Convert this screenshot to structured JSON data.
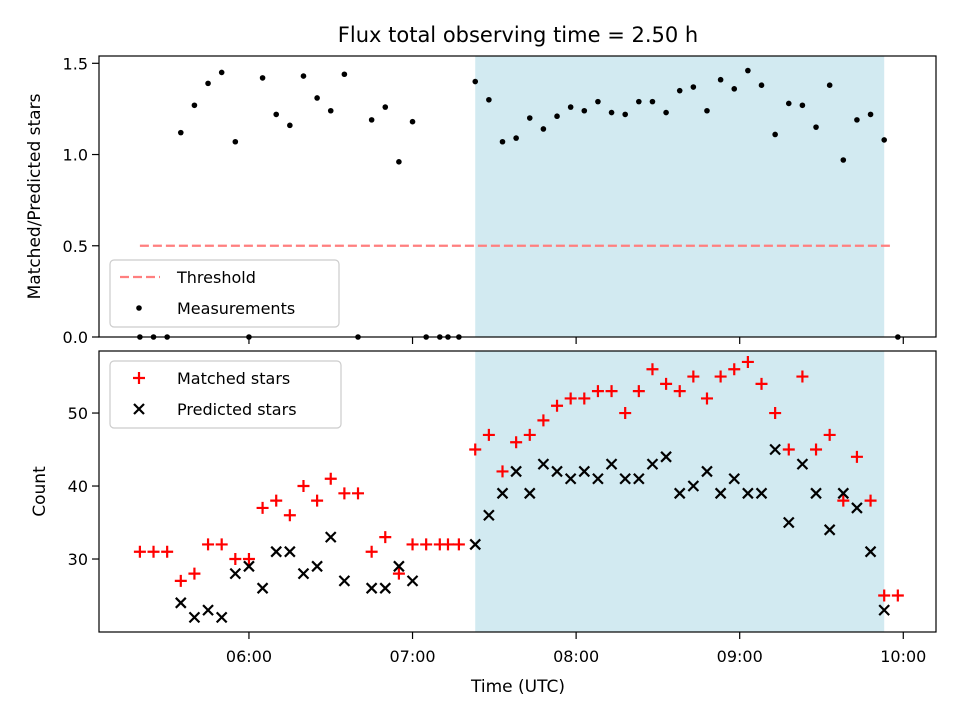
{
  "chart_data": [
    {
      "type": "scatter",
      "title": "Flux total observing time = 2.50 h",
      "xlabel": "",
      "ylabel": "Matched/Predicted stars",
      "xlim": [
        "05:05",
        "10:12"
      ],
      "ylim": [
        0,
        1.54
      ],
      "yticks": [
        0,
        0.5,
        1.0,
        1.5
      ],
      "ytick_labels": [
        "0.0",
        "0.5",
        "1.0",
        "1.5"
      ],
      "grid": false,
      "legend": "lower-left",
      "shaded_interval": {
        "start": "07:23",
        "end": "09:53",
        "color": "#add8e6"
      },
      "threshold": {
        "name": "Threshold",
        "y": 0.5,
        "x_start": "05:20",
        "x_end": "09:56",
        "color": "#ff7f7f",
        "style": "dashed"
      },
      "series": [
        {
          "name": "Measurements",
          "color": "#000000",
          "marker": "dot",
          "points": [
            [
              "05:20",
              0.0
            ],
            [
              "05:25",
              0.0
            ],
            [
              "05:30",
              0.0
            ],
            [
              "05:35",
              1.12
            ],
            [
              "05:40",
              1.27
            ],
            [
              "05:45",
              1.39
            ],
            [
              "05:50",
              1.45
            ],
            [
              "05:55",
              1.07
            ],
            [
              "06:00",
              0.0
            ],
            [
              "06:05",
              1.42
            ],
            [
              "06:10",
              1.22
            ],
            [
              "06:15",
              1.16
            ],
            [
              "06:20",
              1.43
            ],
            [
              "06:25",
              1.31
            ],
            [
              "06:30",
              1.24
            ],
            [
              "06:35",
              1.44
            ],
            [
              "06:40",
              0.0
            ],
            [
              "06:45",
              1.19
            ],
            [
              "06:50",
              1.26
            ],
            [
              "06:55",
              0.96
            ],
            [
              "07:00",
              1.18
            ],
            [
              "07:05",
              0.0
            ],
            [
              "07:10",
              0.0
            ],
            [
              "07:13",
              0.0
            ],
            [
              "07:17",
              0.0
            ],
            [
              "07:23",
              1.4
            ],
            [
              "07:28",
              1.3
            ],
            [
              "07:33",
              1.07
            ],
            [
              "07:38",
              1.09
            ],
            [
              "07:43",
              1.2
            ],
            [
              "07:48",
              1.14
            ],
            [
              "07:53",
              1.21
            ],
            [
              "07:58",
              1.26
            ],
            [
              "08:03",
              1.24
            ],
            [
              "08:08",
              1.29
            ],
            [
              "08:13",
              1.23
            ],
            [
              "08:18",
              1.22
            ],
            [
              "08:23",
              1.29
            ],
            [
              "08:28",
              1.29
            ],
            [
              "08:33",
              1.23
            ],
            [
              "08:38",
              1.35
            ],
            [
              "08:43",
              1.37
            ],
            [
              "08:48",
              1.24
            ],
            [
              "08:53",
              1.41
            ],
            [
              "08:58",
              1.36
            ],
            [
              "09:03",
              1.46
            ],
            [
              "09:08",
              1.38
            ],
            [
              "09:13",
              1.11
            ],
            [
              "09:18",
              1.28
            ],
            [
              "09:23",
              1.27
            ],
            [
              "09:28",
              1.15
            ],
            [
              "09:33",
              1.38
            ],
            [
              "09:38",
              0.97
            ],
            [
              "09:43",
              1.19
            ],
            [
              "09:48",
              1.22
            ],
            [
              "09:53",
              1.08
            ],
            [
              "09:58",
              0.0
            ]
          ]
        }
      ]
    },
    {
      "type": "scatter",
      "title": "",
      "xlabel": "Time (UTC)",
      "ylabel": "Count",
      "xlim": [
        "05:05",
        "10:12"
      ],
      "xticks": [
        "06:00",
        "07:00",
        "08:00",
        "09:00",
        "10:00"
      ],
      "ylim": [
        20,
        58.5
      ],
      "yticks": [
        30,
        40,
        50
      ],
      "ytick_labels": [
        "30",
        "40",
        "50"
      ],
      "grid": false,
      "legend": "upper-left",
      "shaded_interval": {
        "start": "07:23",
        "end": "09:53",
        "color": "#add8e6"
      },
      "series": [
        {
          "name": "Matched stars",
          "color": "#ff0000",
          "marker": "plus",
          "points": [
            [
              "05:20",
              31
            ],
            [
              "05:25",
              31
            ],
            [
              "05:30",
              31
            ],
            [
              "05:35",
              27
            ],
            [
              "05:40",
              28
            ],
            [
              "05:45",
              32
            ],
            [
              "05:50",
              32
            ],
            [
              "05:55",
              30
            ],
            [
              "06:00",
              30
            ],
            [
              "06:05",
              37
            ],
            [
              "06:10",
              38
            ],
            [
              "06:15",
              36
            ],
            [
              "06:20",
              40
            ],
            [
              "06:25",
              38
            ],
            [
              "06:30",
              41
            ],
            [
              "06:35",
              39
            ],
            [
              "06:40",
              39
            ],
            [
              "06:45",
              31
            ],
            [
              "06:50",
              33
            ],
            [
              "06:55",
              28
            ],
            [
              "07:00",
              32
            ],
            [
              "07:05",
              32
            ],
            [
              "07:10",
              32
            ],
            [
              "07:13",
              32
            ],
            [
              "07:17",
              32
            ],
            [
              "07:23",
              45
            ],
            [
              "07:28",
              47
            ],
            [
              "07:33",
              42
            ],
            [
              "07:38",
              46
            ],
            [
              "07:43",
              47
            ],
            [
              "07:48",
              49
            ],
            [
              "07:53",
              51
            ],
            [
              "07:58",
              52
            ],
            [
              "08:03",
              52
            ],
            [
              "08:08",
              53
            ],
            [
              "08:13",
              53
            ],
            [
              "08:18",
              50
            ],
            [
              "08:23",
              53
            ],
            [
              "08:28",
              56
            ],
            [
              "08:33",
              54
            ],
            [
              "08:38",
              53
            ],
            [
              "08:43",
              55
            ],
            [
              "08:48",
              52
            ],
            [
              "08:53",
              55
            ],
            [
              "08:58",
              56
            ],
            [
              "09:03",
              57
            ],
            [
              "09:08",
              54
            ],
            [
              "09:13",
              50
            ],
            [
              "09:18",
              45
            ],
            [
              "09:23",
              55
            ],
            [
              "09:28",
              45
            ],
            [
              "09:33",
              47
            ],
            [
              "09:38",
              38
            ],
            [
              "09:43",
              44
            ],
            [
              "09:48",
              38
            ],
            [
              "09:53",
              25
            ],
            [
              "09:58",
              25
            ]
          ]
        },
        {
          "name": "Predicted stars",
          "color": "#000000",
          "marker": "x",
          "points": [
            [
              "05:35",
              24
            ],
            [
              "05:40",
              22
            ],
            [
              "05:45",
              23
            ],
            [
              "05:50",
              22
            ],
            [
              "05:55",
              28
            ],
            [
              "06:00",
              29
            ],
            [
              "06:05",
              26
            ],
            [
              "06:10",
              31
            ],
            [
              "06:15",
              31
            ],
            [
              "06:20",
              28
            ],
            [
              "06:25",
              29
            ],
            [
              "06:30",
              33
            ],
            [
              "06:35",
              27
            ],
            [
              "06:45",
              26
            ],
            [
              "06:50",
              26
            ],
            [
              "06:55",
              29
            ],
            [
              "07:00",
              27
            ],
            [
              "07:23",
              32
            ],
            [
              "07:28",
              36
            ],
            [
              "07:33",
              39
            ],
            [
              "07:38",
              42
            ],
            [
              "07:43",
              39
            ],
            [
              "07:48",
              43
            ],
            [
              "07:53",
              42
            ],
            [
              "07:58",
              41
            ],
            [
              "08:03",
              42
            ],
            [
              "08:08",
              41
            ],
            [
              "08:13",
              43
            ],
            [
              "08:18",
              41
            ],
            [
              "08:23",
              41
            ],
            [
              "08:28",
              43
            ],
            [
              "08:33",
              44
            ],
            [
              "08:38",
              39
            ],
            [
              "08:43",
              40
            ],
            [
              "08:48",
              42
            ],
            [
              "08:53",
              39
            ],
            [
              "08:58",
              41
            ],
            [
              "09:03",
              39
            ],
            [
              "09:08",
              39
            ],
            [
              "09:13",
              45
            ],
            [
              "09:18",
              35
            ],
            [
              "09:23",
              43
            ],
            [
              "09:28",
              39
            ],
            [
              "09:33",
              34
            ],
            [
              "09:38",
              39
            ],
            [
              "09:43",
              37
            ],
            [
              "09:48",
              31
            ],
            [
              "09:53",
              23
            ]
          ]
        }
      ]
    }
  ]
}
